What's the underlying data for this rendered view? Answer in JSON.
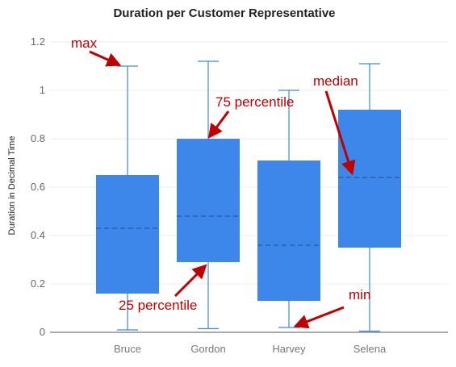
{
  "chart_data": {
    "type": "boxplot",
    "title": "Duration per Customer Representative",
    "xlabel": "",
    "ylabel": "Duration in Decimal Time",
    "ylim": [
      0,
      1.2
    ],
    "yticks": [
      "0",
      "0.2",
      "0.4",
      "0.6",
      "0.8",
      "1",
      "1.2"
    ],
    "categories": [
      "Bruce",
      "Gordon",
      "Harvey",
      "Selena"
    ],
    "boxes": [
      {
        "name": "Bruce",
        "min": 0.01,
        "q1": 0.16,
        "median": 0.43,
        "q3": 0.65,
        "max": 1.1
      },
      {
        "name": "Gordon",
        "min": 0.015,
        "q1": 0.29,
        "median": 0.48,
        "q3": 0.8,
        "max": 1.12
      },
      {
        "name": "Harvey",
        "min": 0.02,
        "q1": 0.13,
        "median": 0.36,
        "q3": 0.71,
        "max": 1.0
      },
      {
        "name": "Selena",
        "min": 0.005,
        "q1": 0.35,
        "median": 0.64,
        "q3": 0.92,
        "max": 1.11
      }
    ],
    "grid": true,
    "colors": {
      "box": "#3d86ea",
      "whisker": "#3d86ea",
      "median": "#2a5a9e",
      "annotation": "#c00000"
    }
  },
  "annotations": [
    {
      "id": "max",
      "text": "max"
    },
    {
      "id": "p75",
      "text": "75 percentile"
    },
    {
      "id": "median",
      "text": "median"
    },
    {
      "id": "p25",
      "text": "25 percentile"
    },
    {
      "id": "min",
      "text": "min"
    }
  ]
}
